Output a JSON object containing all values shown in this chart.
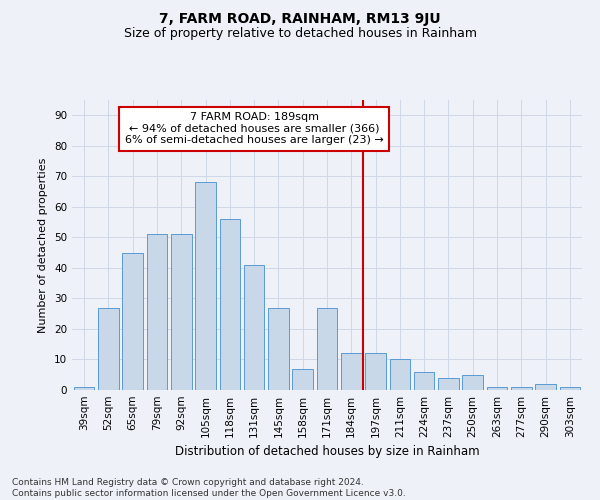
{
  "title": "7, FARM ROAD, RAINHAM, RM13 9JU",
  "subtitle": "Size of property relative to detached houses in Rainham",
  "xlabel": "Distribution of detached houses by size in Rainham",
  "ylabel": "Number of detached properties",
  "categories": [
    "39sqm",
    "52sqm",
    "65sqm",
    "79sqm",
    "92sqm",
    "105sqm",
    "118sqm",
    "131sqm",
    "145sqm",
    "158sqm",
    "171sqm",
    "184sqm",
    "197sqm",
    "211sqm",
    "224sqm",
    "237sqm",
    "250sqm",
    "263sqm",
    "277sqm",
    "290sqm",
    "303sqm"
  ],
  "values": [
    1,
    27,
    45,
    51,
    51,
    68,
    56,
    41,
    27,
    7,
    27,
    12,
    12,
    10,
    6,
    4,
    5,
    1,
    1,
    2,
    1
  ],
  "bar_color": "#c8d8e8",
  "bar_edge_color": "#5a9ad4",
  "vline_color": "#cc0000",
  "annotation_text": "7 FARM ROAD: 189sqm\n← 94% of detached houses are smaller (366)\n6% of semi-detached houses are larger (23) →",
  "annotation_box_color": "#ffffff",
  "annotation_box_edge_color": "#cc0000",
  "ylim": [
    0,
    95
  ],
  "yticks": [
    0,
    10,
    20,
    30,
    40,
    50,
    60,
    70,
    80,
    90
  ],
  "grid_color": "#d0d8e8",
  "background_color": "#eef2f8",
  "footnote": "Contains HM Land Registry data © Crown copyright and database right 2024.\nContains public sector information licensed under the Open Government Licence v3.0.",
  "title_fontsize": 10,
  "subtitle_fontsize": 9,
  "xlabel_fontsize": 8.5,
  "ylabel_fontsize": 8,
  "tick_fontsize": 7.5,
  "annotation_fontsize": 8,
  "footnote_fontsize": 6.5
}
